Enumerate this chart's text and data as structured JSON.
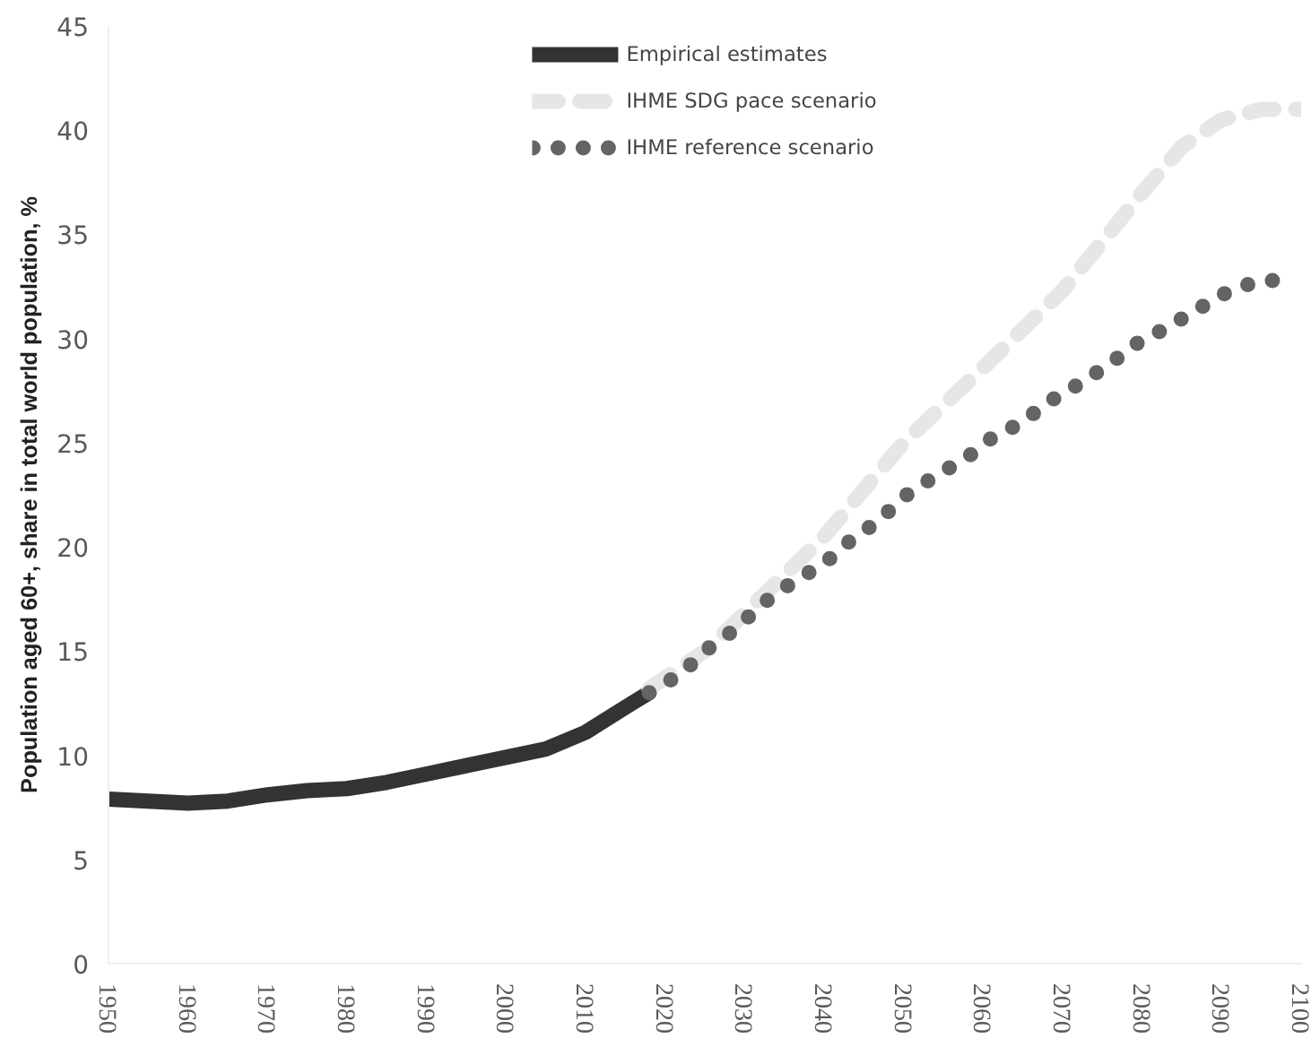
{
  "chart_data": {
    "type": "line",
    "ylabel": "Population aged 60+, share in total world population, %",
    "xlim": [
      1950,
      2100
    ],
    "xticks": [
      1950,
      1960,
      1970,
      1980,
      1990,
      2000,
      2010,
      2020,
      2030,
      2040,
      2050,
      2060,
      2070,
      2080,
      2090,
      2100
    ],
    "ylim": [
      0,
      45
    ],
    "yticks": [
      0,
      5,
      10,
      15,
      20,
      25,
      30,
      35,
      40,
      45
    ],
    "grid": false,
    "legend": "top",
    "series": [
      {
        "name": "Empirical estimates",
        "color": "#333333",
        "line_style": "solid",
        "x": [
          1950,
          1955,
          1960,
          1965,
          1970,
          1975,
          1980,
          1985,
          1990,
          1995,
          2000,
          2005,
          2010,
          2015,
          2018
        ],
        "values": [
          7.9,
          7.8,
          7.7,
          7.8,
          8.1,
          8.3,
          8.4,
          8.7,
          9.1,
          9.5,
          9.9,
          10.3,
          11.1,
          12.3,
          13.0
        ]
      },
      {
        "name": "IHME SDG pace scenario",
        "color": "#e6e6e6",
        "line_style": "dashed",
        "x": [
          2018,
          2025,
          2030,
          2040,
          2050,
          2060,
          2070,
          2080,
          2085,
          2090,
          2095,
          2100
        ],
        "values": [
          13.2,
          15.0,
          16.8,
          20.5,
          25.0,
          28.6,
          32.3,
          37.0,
          39.2,
          40.5,
          41.0,
          41.0
        ]
      },
      {
        "name": "IHME reference scenario",
        "color": "#646464",
        "line_style": "dotted",
        "x": [
          2018,
          2022,
          2025,
          2029,
          2032,
          2036,
          2040,
          2043,
          2047,
          2050,
          2054,
          2058,
          2061,
          2065,
          2068,
          2072,
          2076,
          2079,
          2083,
          2087,
          2090,
          2094,
          2097
        ],
        "values": [
          13.0,
          13.9,
          15.0,
          16.1,
          17.2,
          18.3,
          19.2,
          20.2,
          21.3,
          22.4,
          23.4,
          24.3,
          25.2,
          26.0,
          26.9,
          27.8,
          28.8,
          29.7,
          30.5,
          31.4,
          32.1,
          32.7,
          32.8
        ]
      }
    ]
  }
}
